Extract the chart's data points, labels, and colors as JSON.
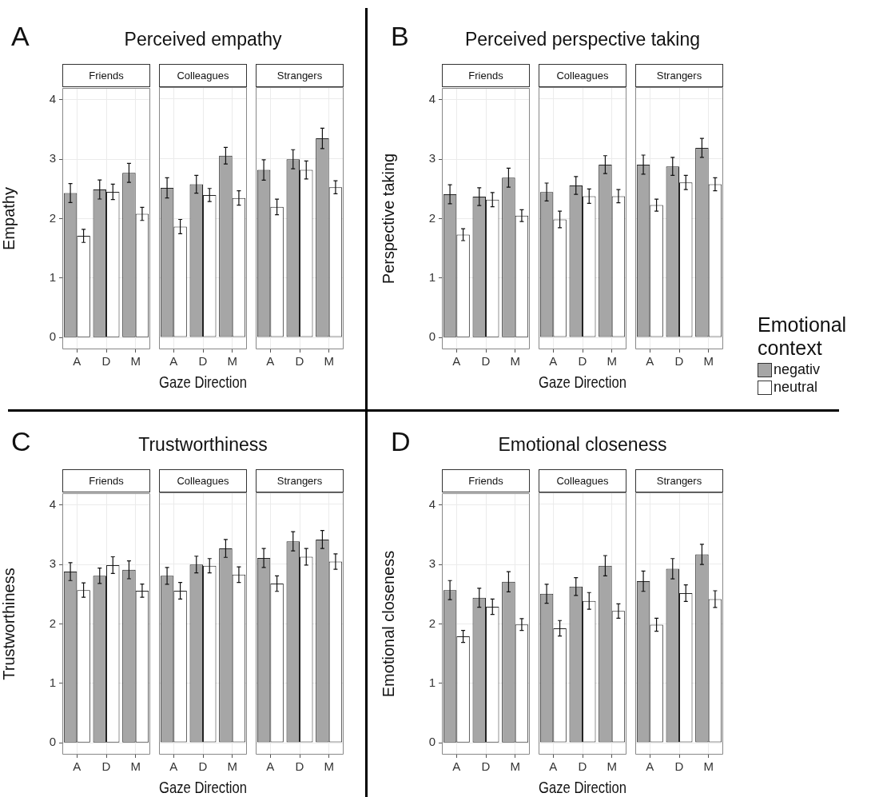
{
  "chart_data": [
    {
      "type": "bar",
      "subtitle": "Friends",
      "ylabel": "Empathy",
      "annotations": [
        "A"
      ],
      "categories": [
        "A",
        "D",
        "M"
      ],
      "series": [
        {
          "color": "#a6a6a6",
          "values": [
            2.43,
            2.49,
            2.77
          ],
          "errors": [
            0.16,
            0.16,
            0.16
          ]
        },
        {
          "color": "#ffffff",
          "values": [
            1.71,
            2.45,
            2.08
          ],
          "errors": [
            0.11,
            0.13,
            0.11
          ]
        }
      ],
      "ylim": [
        -0.2,
        4.2
      ],
      "yticks": [
        0,
        1,
        2,
        3,
        4
      ],
      "grid": true
    },
    {
      "type": "bar",
      "title": "Perceived empathy",
      "subtitle": "Colleagues",
      "xlabel": "Gaze Direction",
      "categories": [
        "A",
        "D",
        "M"
      ],
      "series": [
        {
          "color": "#a6a6a6",
          "values": [
            2.51,
            2.57,
            3.05
          ],
          "errors": [
            0.17,
            0.15,
            0.14
          ]
        },
        {
          "color": "#ffffff",
          "values": [
            1.86,
            2.39,
            2.34
          ],
          "errors": [
            0.12,
            0.11,
            0.12
          ]
        }
      ],
      "ylim": [
        -0.2,
        4.2
      ],
      "yticks": [
        0,
        1,
        2,
        3,
        4
      ],
      "grid": true,
      "tick_labels": "x"
    },
    {
      "type": "bar",
      "subtitle": "Strangers",
      "categories": [
        "A",
        "D",
        "M"
      ],
      "series": [
        {
          "color": "#a6a6a6",
          "values": [
            2.81,
            2.99,
            3.34
          ],
          "errors": [
            0.17,
            0.16,
            0.17
          ]
        },
        {
          "color": "#ffffff",
          "values": [
            2.19,
            2.81,
            2.52
          ],
          "errors": [
            0.13,
            0.15,
            0.11
          ]
        }
      ],
      "ylim": [
        -0.2,
        4.2
      ],
      "yticks": [
        0,
        1,
        2,
        3,
        4
      ],
      "grid": true,
      "tick_labels": "x"
    },
    {
      "type": "bar",
      "subtitle": "Friends",
      "ylabel": "Perspective taking",
      "annotations": [
        "B"
      ],
      "categories": [
        "A",
        "D",
        "M"
      ],
      "series": [
        {
          "color": "#a6a6a6",
          "values": [
            2.41,
            2.37,
            2.69
          ],
          "errors": [
            0.16,
            0.15,
            0.16
          ]
        },
        {
          "color": "#ffffff",
          "values": [
            1.73,
            2.32,
            2.05
          ],
          "errors": [
            0.1,
            0.12,
            0.1
          ]
        }
      ],
      "ylim": [
        -0.2,
        4.2
      ],
      "yticks": [
        0,
        1,
        2,
        3,
        4
      ],
      "grid": true
    },
    {
      "type": "bar",
      "title": "Perceived perspective taking",
      "subtitle": "Colleagues",
      "xlabel": "Gaze Direction",
      "categories": [
        "A",
        "D",
        "M"
      ],
      "series": [
        {
          "color": "#a6a6a6",
          "values": [
            2.44,
            2.55,
            2.9
          ],
          "errors": [
            0.15,
            0.15,
            0.15
          ]
        },
        {
          "color": "#ffffff",
          "values": [
            1.98,
            2.37,
            2.37
          ],
          "errors": [
            0.14,
            0.12,
            0.11
          ]
        }
      ],
      "ylim": [
        -0.2,
        4.2
      ],
      "yticks": [
        0,
        1,
        2,
        3,
        4
      ],
      "grid": true,
      "tick_labels": "x"
    },
    {
      "type": "bar",
      "subtitle": "Strangers",
      "legend": "right",
      "legend_title": "Emotional context",
      "categories": [
        "A",
        "D",
        "M"
      ],
      "series": [
        {
          "name": "negativ",
          "color": "#a6a6a6",
          "values": [
            2.9,
            2.87,
            3.18
          ],
          "errors": [
            0.16,
            0.15,
            0.16
          ]
        },
        {
          "name": "neutral",
          "color": "#ffffff",
          "values": [
            2.22,
            2.6,
            2.57
          ],
          "errors": [
            0.1,
            0.12,
            0.11
          ]
        }
      ],
      "ylim": [
        -0.2,
        4.2
      ],
      "yticks": [
        0,
        1,
        2,
        3,
        4
      ],
      "grid": true,
      "tick_labels": "x"
    },
    {
      "type": "bar",
      "subtitle": "Friends",
      "ylabel": "Trustworthiness",
      "annotations": [
        "C"
      ],
      "categories": [
        "A",
        "D",
        "M"
      ],
      "series": [
        {
          "color": "#a6a6a6",
          "values": [
            2.88,
            2.81,
            2.91
          ],
          "errors": [
            0.15,
            0.13,
            0.15
          ]
        },
        {
          "color": "#ffffff",
          "values": [
            2.57,
            2.99,
            2.56
          ],
          "errors": [
            0.12,
            0.14,
            0.11
          ]
        }
      ],
      "ylim": [
        -0.2,
        4.2
      ],
      "yticks": [
        0,
        1,
        2,
        3,
        4
      ],
      "grid": true
    },
    {
      "type": "bar",
      "title": "Trustworthiness",
      "subtitle": "Colleagues",
      "xlabel": "Gaze Direction",
      "categories": [
        "A",
        "D",
        "M"
      ],
      "series": [
        {
          "color": "#a6a6a6",
          "values": [
            2.8,
            2.99,
            3.26
          ],
          "errors": [
            0.14,
            0.14,
            0.15
          ]
        },
        {
          "color": "#ffffff",
          "values": [
            2.55,
            2.97,
            2.82
          ],
          "errors": [
            0.14,
            0.12,
            0.13
          ]
        }
      ],
      "ylim": [
        -0.2,
        4.2
      ],
      "yticks": [
        0,
        1,
        2,
        3,
        4
      ],
      "grid": true,
      "tick_labels": "x"
    },
    {
      "type": "bar",
      "subtitle": "Strangers",
      "categories": [
        "A",
        "D",
        "M"
      ],
      "series": [
        {
          "color": "#a6a6a6",
          "values": [
            3.1,
            3.38,
            3.41
          ],
          "errors": [
            0.16,
            0.16,
            0.15
          ]
        },
        {
          "color": "#ffffff",
          "values": [
            2.67,
            3.12,
            3.04
          ],
          "errors": [
            0.13,
            0.14,
            0.13
          ]
        }
      ],
      "ylim": [
        -0.2,
        4.2
      ],
      "yticks": [
        0,
        1,
        2,
        3,
        4
      ],
      "grid": true,
      "tick_labels": "x"
    },
    {
      "type": "bar",
      "subtitle": "Friends",
      "ylabel": "Emotional closeness",
      "annotations": [
        "D"
      ],
      "categories": [
        "A",
        "D",
        "M"
      ],
      "series": [
        {
          "color": "#a6a6a6",
          "values": [
            2.57,
            2.44,
            2.71
          ],
          "errors": [
            0.16,
            0.16,
            0.17
          ]
        },
        {
          "color": "#ffffff",
          "values": [
            1.79,
            2.29,
            1.99
          ],
          "errors": [
            0.1,
            0.13,
            0.1
          ]
        }
      ],
      "ylim": [
        -0.2,
        4.2
      ],
      "yticks": [
        0,
        1,
        2,
        3,
        4
      ],
      "grid": true
    },
    {
      "type": "bar",
      "title": "Emotional closeness",
      "subtitle": "Colleagues",
      "xlabel": "Gaze Direction",
      "categories": [
        "A",
        "D",
        "M"
      ],
      "series": [
        {
          "color": "#a6a6a6",
          "values": [
            2.5,
            2.62,
            2.97
          ],
          "errors": [
            0.16,
            0.15,
            0.17
          ]
        },
        {
          "color": "#ffffff",
          "values": [
            1.92,
            2.38,
            2.21
          ],
          "errors": [
            0.13,
            0.14,
            0.12
          ]
        }
      ],
      "ylim": [
        -0.2,
        4.2
      ],
      "yticks": [
        0,
        1,
        2,
        3,
        4
      ],
      "grid": true,
      "tick_labels": "x"
    },
    {
      "type": "bar",
      "subtitle": "Strangers",
      "categories": [
        "A",
        "D",
        "M"
      ],
      "series": [
        {
          "color": "#a6a6a6",
          "values": [
            2.71,
            2.92,
            3.16
          ],
          "errors": [
            0.17,
            0.17,
            0.17
          ]
        },
        {
          "color": "#ffffff",
          "values": [
            1.98,
            2.51,
            2.41
          ],
          "errors": [
            0.11,
            0.14,
            0.14
          ]
        }
      ],
      "ylim": [
        -0.2,
        4.2
      ],
      "yticks": [
        0,
        1,
        2,
        3,
        4
      ],
      "grid": true,
      "tick_labels": "x"
    }
  ]
}
